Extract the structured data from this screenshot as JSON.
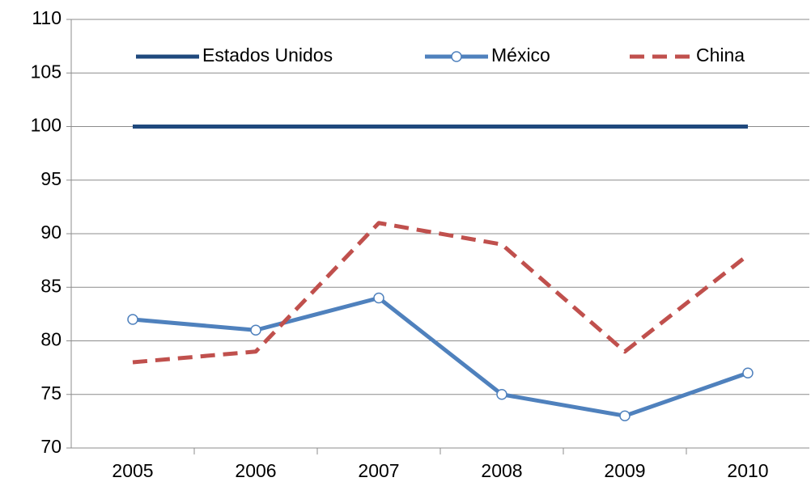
{
  "chart_data": {
    "type": "line",
    "categories": [
      "2005",
      "2006",
      "2007",
      "2008",
      "2009",
      "2010"
    ],
    "series": [
      {
        "name": "Estados Unidos",
        "color": "#1f497d",
        "values": [
          100,
          100,
          100,
          100,
          100,
          100
        ]
      },
      {
        "name": "México",
        "color": "#4f81bd",
        "marker": "circle",
        "values": [
          82,
          81,
          84,
          75,
          73,
          77
        ]
      },
      {
        "name": "China",
        "color": "#c0504d",
        "dashed": true,
        "values": [
          78,
          79,
          91,
          89,
          79,
          88
        ]
      }
    ],
    "ylim": [
      70,
      110
    ],
    "yticks": [
      70,
      75,
      80,
      85,
      90,
      95,
      100,
      105,
      110
    ],
    "grid": true,
    "legend": "top"
  }
}
